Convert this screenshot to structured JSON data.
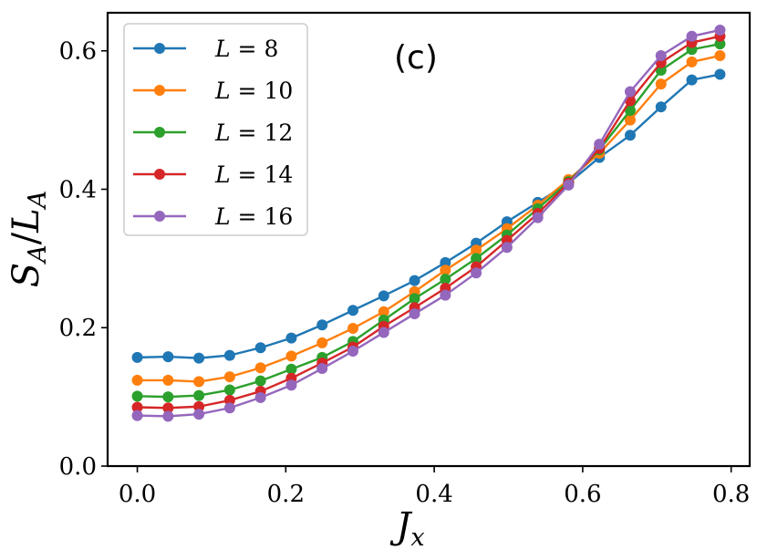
{
  "chart_data": {
    "type": "line",
    "annotation": "(c)",
    "xlabel_main": "J",
    "xlabel_sub": "x",
    "ylabel_main": "S",
    "ylabel_sub": "A",
    "ylabel_slash": "/",
    "ylabel_main2": "L",
    "ylabel_sub2": "A",
    "xlim": [
      -0.04,
      0.825
    ],
    "ylim": [
      0.0,
      0.655
    ],
    "xticks": [
      0.0,
      0.2,
      0.4,
      0.6,
      0.8
    ],
    "xtick_labels": [
      "0.0",
      "0.2",
      "0.4",
      "0.6",
      "0.8"
    ],
    "yticks": [
      0.0,
      0.2,
      0.4,
      0.6
    ],
    "ytick_labels": [
      "0.0",
      "0.2",
      "0.4",
      "0.6"
    ],
    "grid": false,
    "legend_position": "upper-left",
    "x": [
      0.0,
      0.0415,
      0.083,
      0.1245,
      0.166,
      0.2075,
      0.249,
      0.2905,
      0.332,
      0.3735,
      0.415,
      0.4565,
      0.498,
      0.5395,
      0.581,
      0.6225,
      0.664,
      0.7055,
      0.747,
      0.785
    ],
    "series": [
      {
        "name": "L = 8",
        "color": "#1f77b4",
        "values": [
          0.157,
          0.158,
          0.156,
          0.16,
          0.171,
          0.185,
          0.204,
          0.225,
          0.246,
          0.268,
          0.294,
          0.322,
          0.353,
          0.381,
          0.409,
          0.446,
          0.478,
          0.519,
          0.558,
          0.566
        ]
      },
      {
        "name": "L = 10",
        "color": "#ff7f0e",
        "values": [
          0.124,
          0.124,
          0.122,
          0.129,
          0.142,
          0.159,
          0.178,
          0.199,
          0.223,
          0.252,
          0.283,
          0.312,
          0.343,
          0.377,
          0.414,
          0.452,
          0.5,
          0.552,
          0.584,
          0.593
        ]
      },
      {
        "name": "L = 12",
        "color": "#2ca02c",
        "values": [
          0.101,
          0.1,
          0.102,
          0.11,
          0.123,
          0.14,
          0.157,
          0.18,
          0.211,
          0.242,
          0.27,
          0.3,
          0.334,
          0.372,
          0.411,
          0.457,
          0.514,
          0.572,
          0.602,
          0.61
        ]
      },
      {
        "name": "L = 14",
        "color": "#d62728",
        "values": [
          0.085,
          0.084,
          0.086,
          0.095,
          0.108,
          0.127,
          0.149,
          0.172,
          0.202,
          0.229,
          0.257,
          0.288,
          0.326,
          0.365,
          0.409,
          0.459,
          0.528,
          0.583,
          0.612,
          0.621
        ]
      },
      {
        "name": "L = 16",
        "color": "#9467bd",
        "values": [
          0.073,
          0.072,
          0.075,
          0.084,
          0.099,
          0.117,
          0.141,
          0.166,
          0.193,
          0.22,
          0.247,
          0.279,
          0.316,
          0.359,
          0.406,
          0.465,
          0.541,
          0.593,
          0.621,
          0.63
        ]
      }
    ],
    "legend_entries": [
      {
        "pre": "L",
        "post": " = 8"
      },
      {
        "pre": "L",
        "post": " = 10"
      },
      {
        "pre": "L",
        "post": " = 12"
      },
      {
        "pre": "L",
        "post": " = 14"
      },
      {
        "pre": "L",
        "post": " = 16"
      }
    ]
  }
}
